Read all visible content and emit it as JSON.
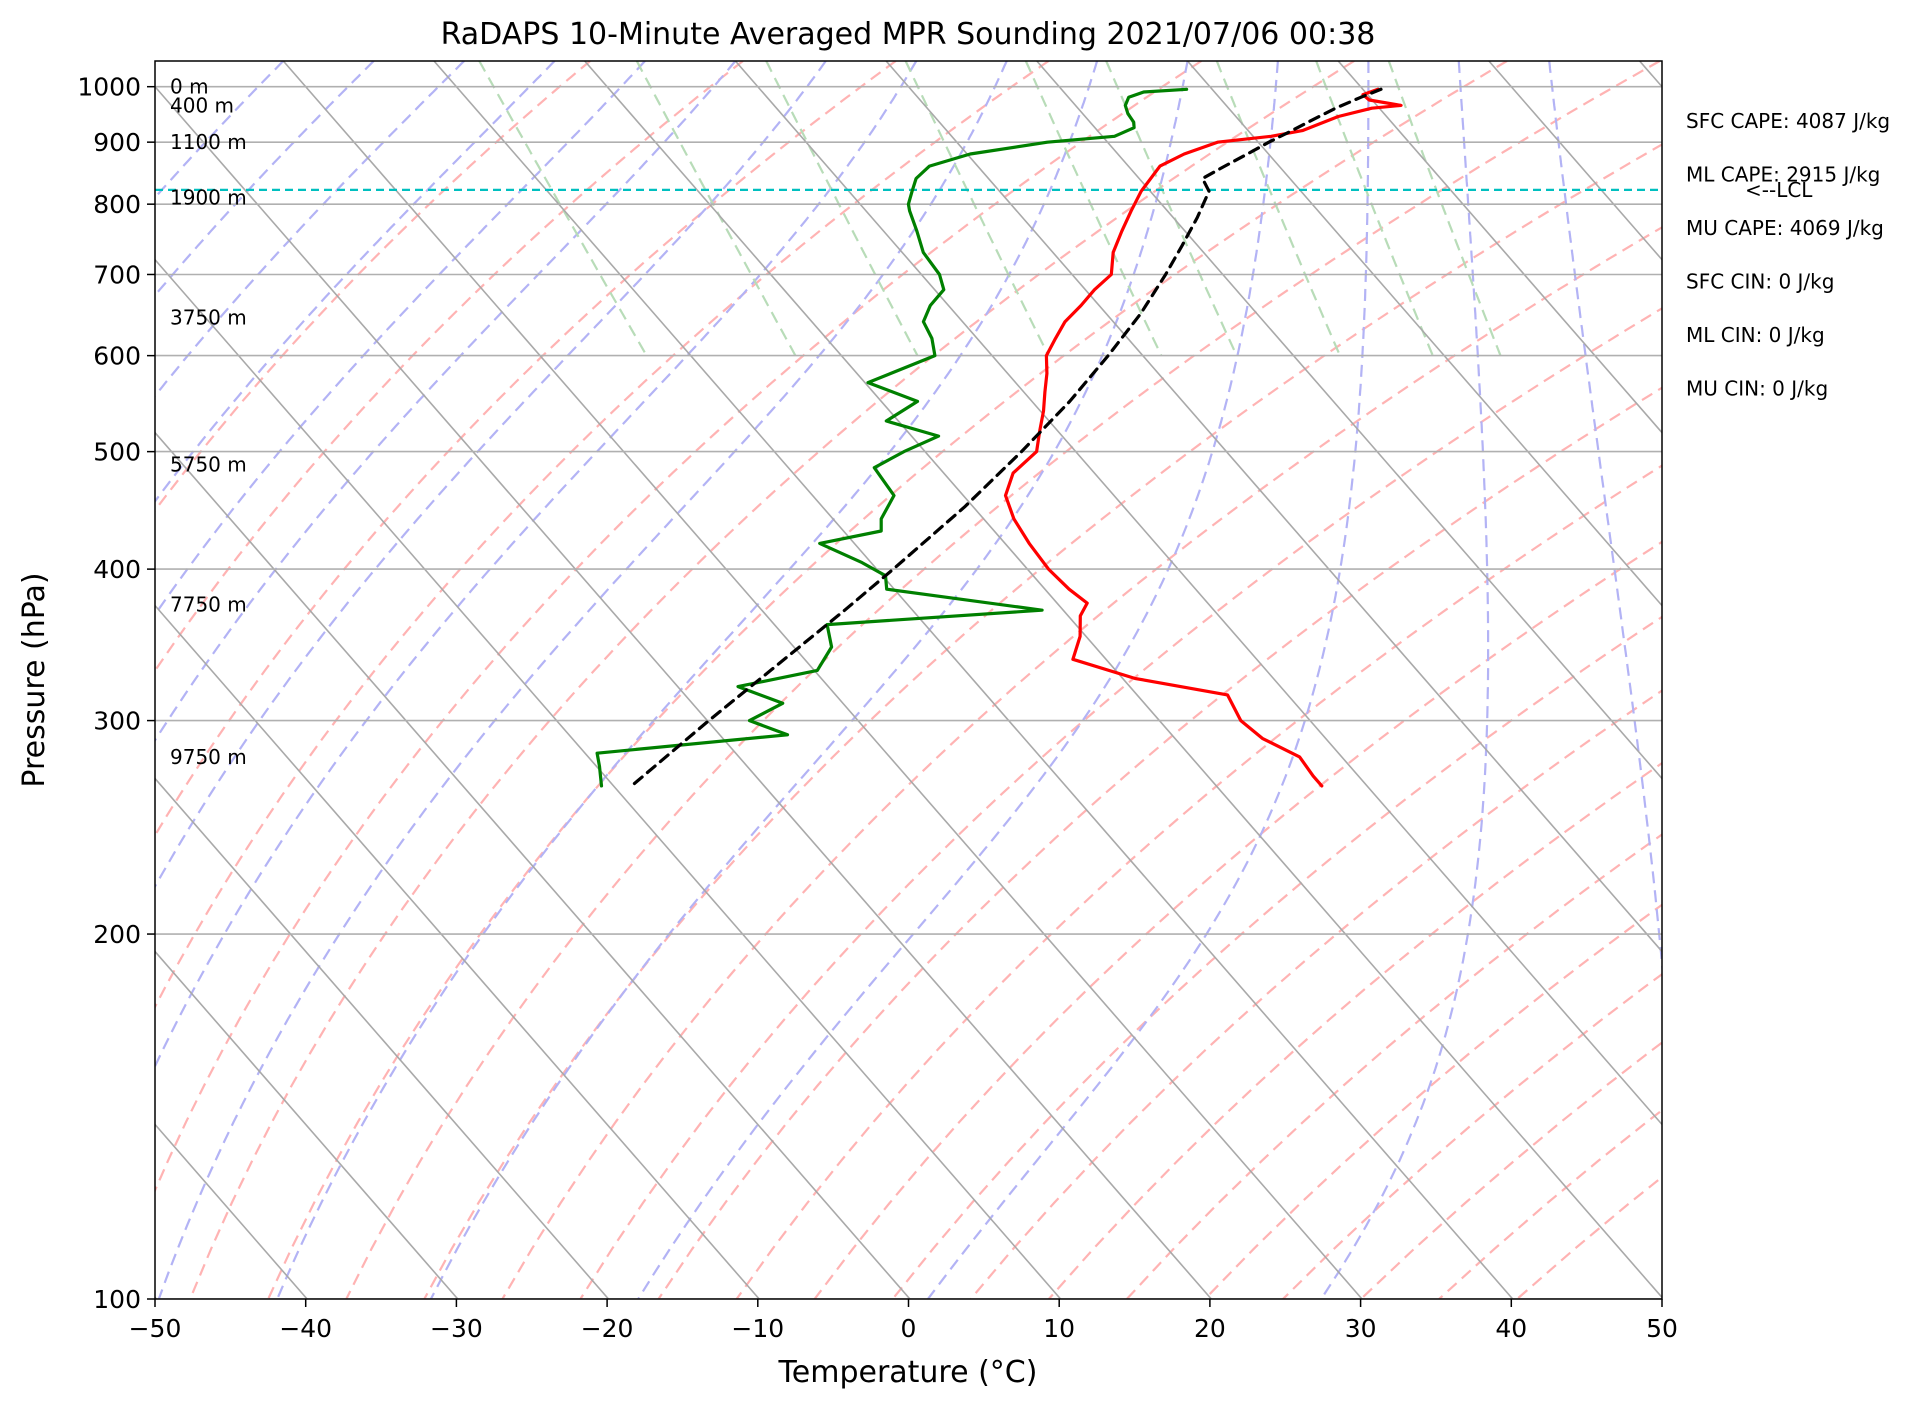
{
  "chart_data": {
    "type": "line",
    "title": "RaDAPS 10-Minute Averaged MPR Sounding 2021/07/06 00:38",
    "xlabel": "Temperature (°C)",
    "ylabel": "Pressure (hPa)",
    "xlim": [
      -50,
      50
    ],
    "ylim": [
      1050,
      100
    ],
    "y_scale": "log",
    "skew_t": true,
    "grid": true,
    "x_ticks": [
      -50,
      -40,
      -30,
      -20,
      -10,
      0,
      10,
      20,
      30,
      40,
      50
    ],
    "x_tick_labels": [
      "−50",
      "−40",
      "−30",
      "−20",
      "−10",
      "0",
      "10",
      "20",
      "30",
      "40",
      "50"
    ],
    "y_ticks": [
      1000,
      900,
      800,
      700,
      600,
      500,
      400,
      300,
      200,
      100
    ],
    "y_tick_labels": [
      "1000",
      "900",
      "800",
      "700",
      "600",
      "500",
      "400",
      "300",
      "200",
      "100"
    ],
    "series": [
      {
        "color": "#ff0000",
        "points": [
          [
            995,
            31
          ],
          [
            985,
            29.7
          ],
          [
            975,
            29.8
          ],
          [
            965,
            31.6
          ],
          [
            960,
            29.5
          ],
          [
            945,
            26.8
          ],
          [
            920,
            23.6
          ],
          [
            910,
            21.2
          ],
          [
            900,
            17.3
          ],
          [
            880,
            14.4
          ],
          [
            860,
            12.1
          ],
          [
            820,
            9.4
          ],
          [
            790,
            7.6
          ],
          [
            760,
            5.8
          ],
          [
            730,
            4.0
          ],
          [
            700,
            2.6
          ],
          [
            680,
            0.6
          ],
          [
            660,
            -1.2
          ],
          [
            640,
            -3.2
          ],
          [
            620,
            -4.8
          ],
          [
            600,
            -6.4
          ],
          [
            580,
            -7.4
          ],
          [
            560,
            -8.6
          ],
          [
            540,
            -9.8
          ],
          [
            520,
            -11.2
          ],
          [
            500,
            -12.6
          ],
          [
            480,
            -15.4
          ],
          [
            460,
            -17.2
          ],
          [
            440,
            -18.0
          ],
          [
            420,
            -18.4
          ],
          [
            400,
            -18.6
          ],
          [
            385,
            -18.4
          ],
          [
            375,
            -18.0
          ],
          [
            366,
            -19.2
          ],
          [
            352,
            -20.4
          ],
          [
            337,
            -22.2
          ],
          [
            325,
            -19.2
          ],
          [
            315,
            -14.0
          ],
          [
            300,
            -14.6
          ],
          [
            290,
            -14.2
          ],
          [
            280,
            -12.8
          ],
          [
            270,
            -13.0
          ],
          [
            265,
            -13.0
          ]
        ]
      },
      {
        "color": "#008000",
        "points": [
          [
            995,
            18.3
          ],
          [
            990,
            15.3
          ],
          [
            980,
            14.0
          ],
          [
            965,
            13.3
          ],
          [
            950,
            13.0
          ],
          [
            935,
            12.9
          ],
          [
            925,
            12.6
          ],
          [
            910,
            10.8
          ],
          [
            900,
            6.0
          ],
          [
            880,
            0.2
          ],
          [
            860,
            -3.2
          ],
          [
            840,
            -4.8
          ],
          [
            820,
            -5.8
          ],
          [
            800,
            -6.8
          ],
          [
            790,
            -7.1
          ],
          [
            760,
            -7.8
          ],
          [
            730,
            -8.6
          ],
          [
            700,
            -8.8
          ],
          [
            680,
            -9.4
          ],
          [
            660,
            -11.2
          ],
          [
            640,
            -12.6
          ],
          [
            620,
            -13.0
          ],
          [
            600,
            -13.8
          ],
          [
            570,
            -19.8
          ],
          [
            550,
            -17.6
          ],
          [
            530,
            -20.8
          ],
          [
            515,
            -18.2
          ],
          [
            500,
            -21.4
          ],
          [
            485,
            -24.3
          ],
          [
            460,
            -24.6
          ],
          [
            440,
            -26.8
          ],
          [
            430,
            -27.5
          ],
          [
            420,
            -32.3
          ],
          [
            405,
            -30.6
          ],
          [
            395,
            -29.8
          ],
          [
            385,
            -30.5
          ],
          [
            370,
            -21.4
          ],
          [
            360,
            -36.5
          ],
          [
            345,
            -37.5
          ],
          [
            330,
            -39.8
          ],
          [
            320,
            -46.0
          ],
          [
            310,
            -44.0
          ],
          [
            300,
            -47.2
          ],
          [
            292,
            -45.5
          ],
          [
            282,
            -59.2
          ],
          [
            275,
            -59.8
          ],
          [
            265,
            -60.8
          ]
        ]
      },
      {
        "color": "#000000",
        "dashed": true,
        "points": [
          [
            995,
            31.2
          ],
          [
            980,
            29.4
          ],
          [
            960,
            27.1
          ],
          [
            940,
            25.0
          ],
          [
            920,
            22.9
          ],
          [
            900,
            20.7
          ],
          [
            880,
            18.6
          ],
          [
            860,
            16.4
          ],
          [
            840,
            14.2
          ],
          [
            820,
            13.9
          ],
          [
            780,
            11.6
          ],
          [
            740,
            9.0
          ],
          [
            700,
            6.2
          ],
          [
            650,
            2.3
          ],
          [
            600,
            -2.3
          ],
          [
            550,
            -7.5
          ],
          [
            500,
            -13.6
          ],
          [
            450,
            -20.6
          ],
          [
            400,
            -28.9
          ],
          [
            370,
            -34.5
          ],
          [
            330,
            -42.9
          ],
          [
            300,
            -49.9
          ],
          [
            265,
            -58.8
          ]
        ]
      }
    ],
    "height_labels": [
      {
        "p": 1000,
        "label": "0 m"
      },
      {
        "p": 965,
        "label": "400 m"
      },
      {
        "p": 900,
        "label": "1100 m"
      },
      {
        "p": 810,
        "label": "1900 m"
      },
      {
        "p": 645,
        "label": "3750 m"
      },
      {
        "p": 488,
        "label": "5750 m"
      },
      {
        "p": 374,
        "label": "7750 m"
      },
      {
        "p": 280,
        "label": "9750 m"
      }
    ],
    "lcl": {
      "p": 822,
      "label": "<--LCL",
      "color": "#00bfbf"
    },
    "indices": [
      "SFC CAPE: 4087 J/kg",
      "ML CAPE: 2915 J/kg",
      "MU CAPE: 4069 J/kg",
      "SFC CIN: 0 J/kg",
      "ML CIN: 0 J/kg",
      "MU CIN: 0 J/kg"
    ],
    "background_lines": {
      "isotherm_color": "#a9a9a9",
      "dry_adiabat_color": "#ffb3b3",
      "moist_adiabat_color": "#b3b3f5",
      "mixing_ratio_color": "#b8dcb8"
    }
  }
}
